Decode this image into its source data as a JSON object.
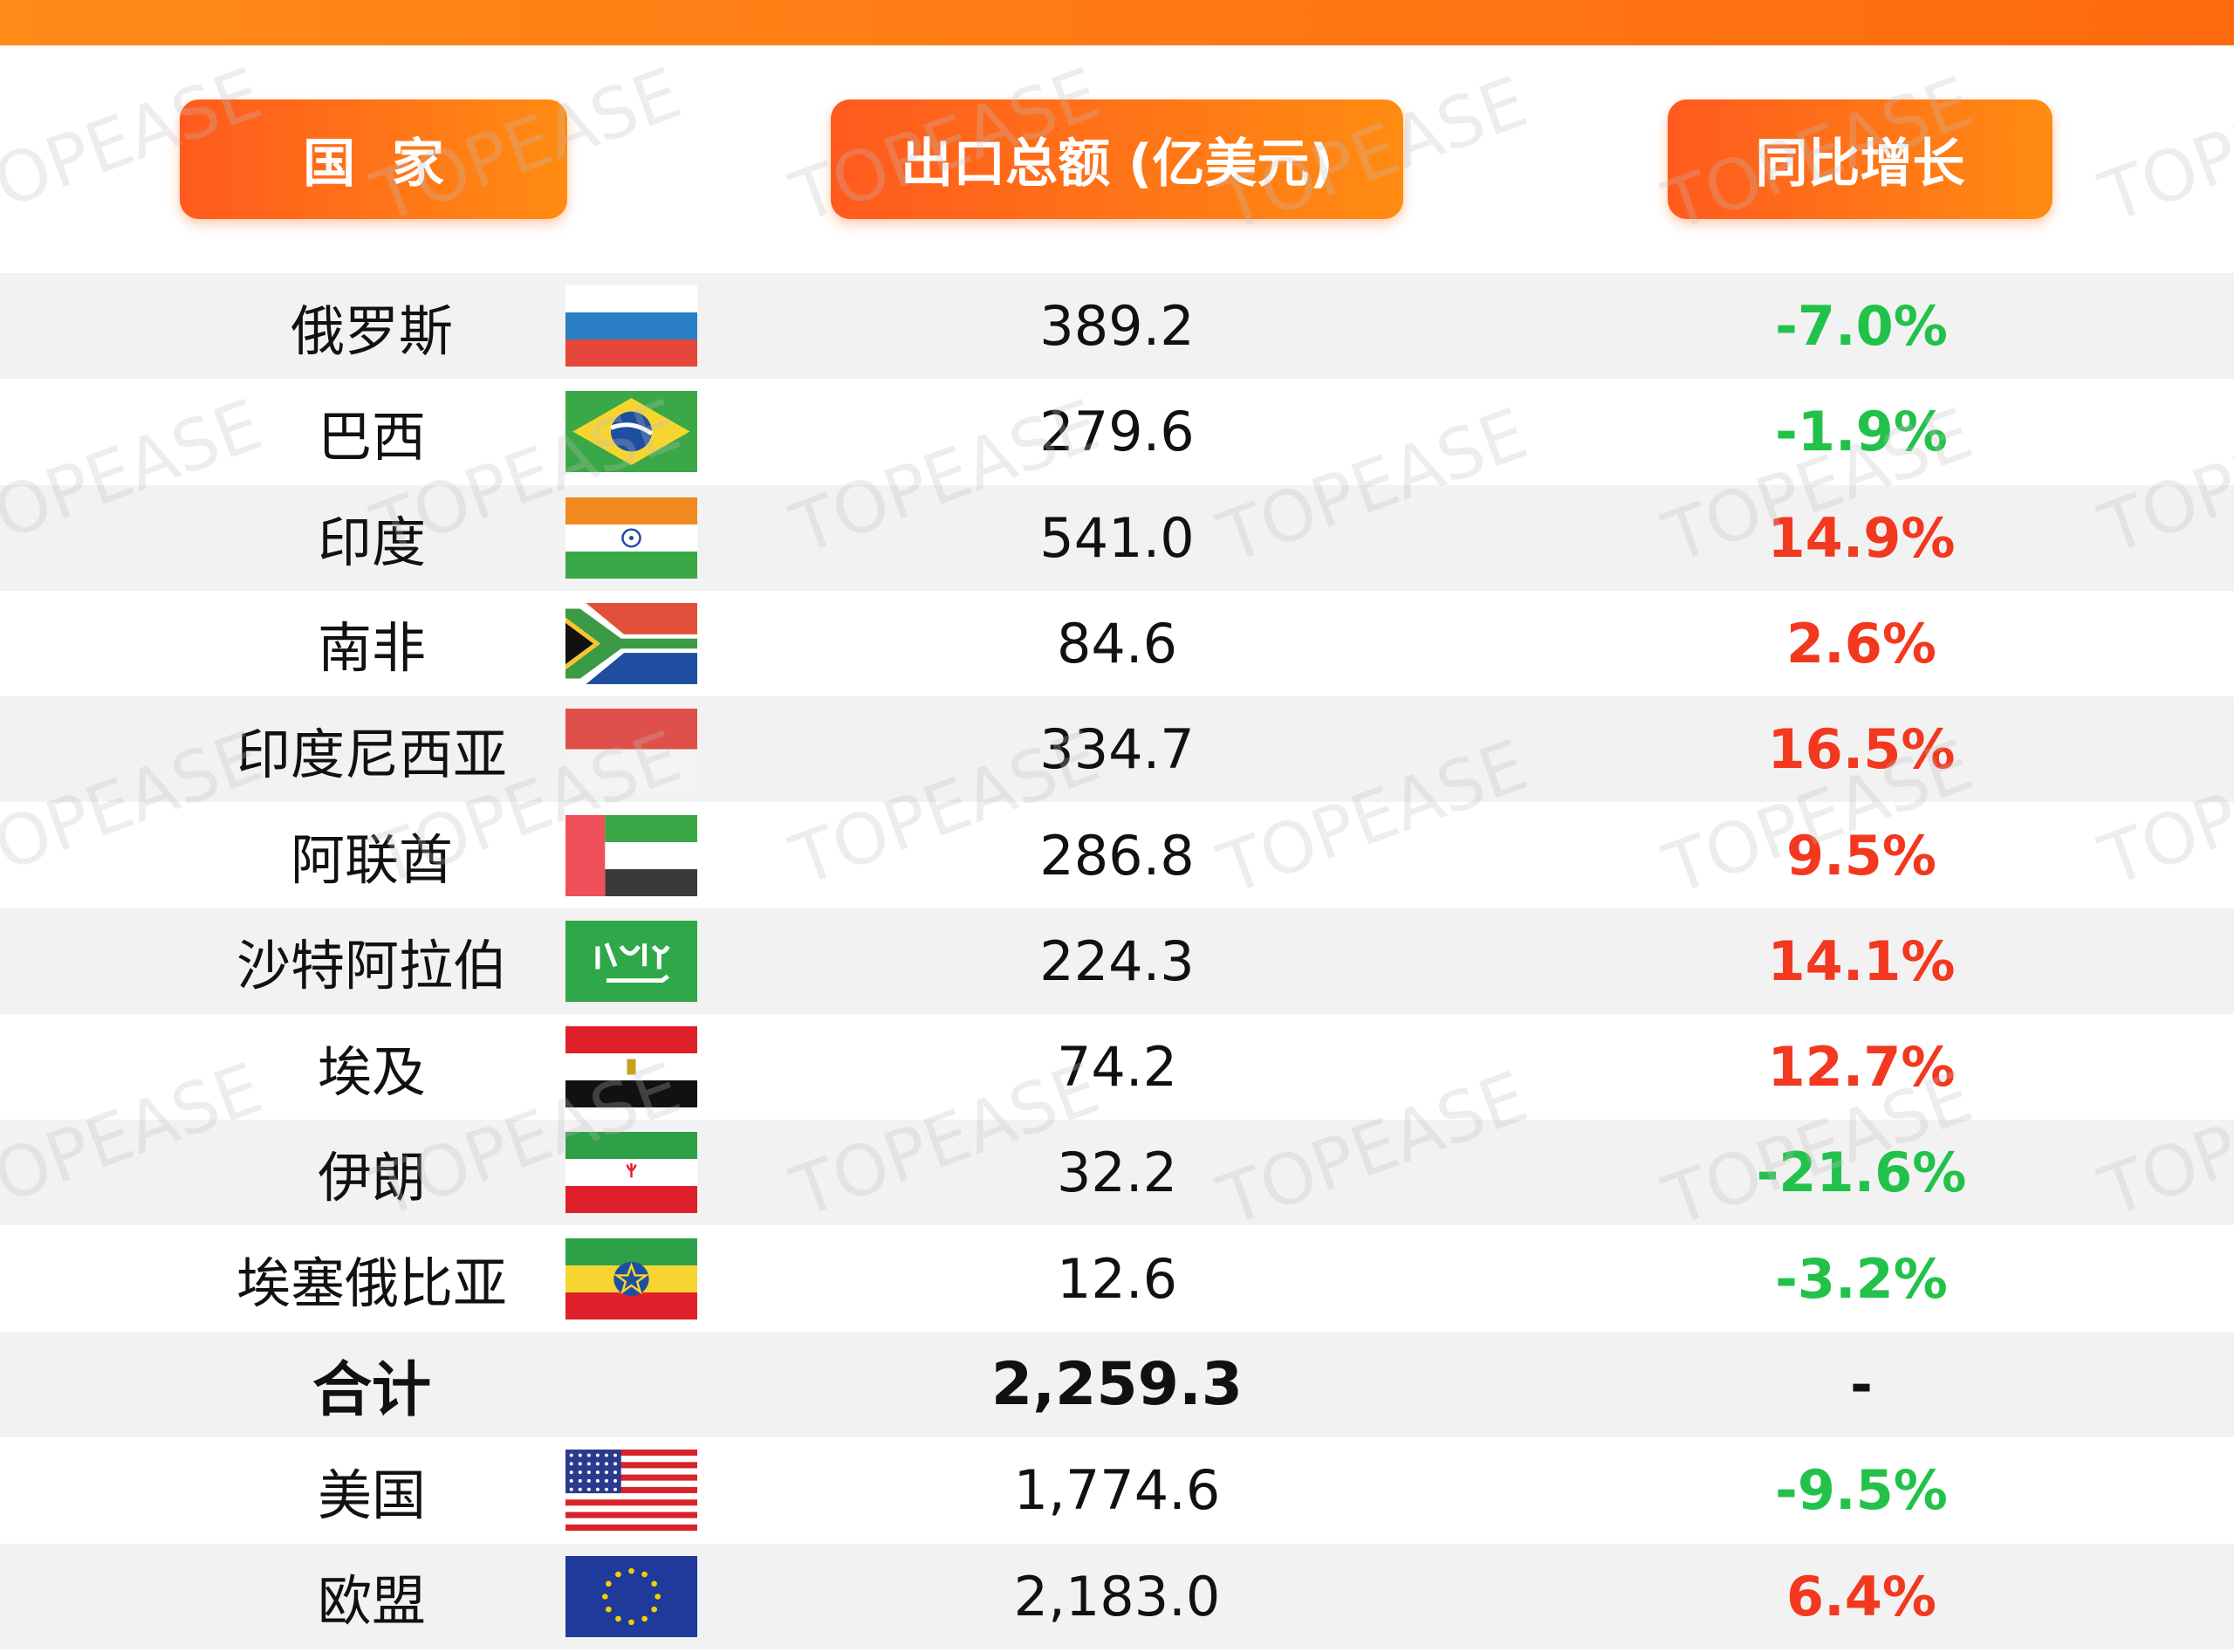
{
  "watermark": "TOPEASE",
  "header": {
    "columns": [
      "国  家",
      "出口总额 (亿美元)",
      "同比增长"
    ]
  },
  "colors": {
    "up": "#f2381f",
    "down": "#22c24a",
    "flat": "#111111"
  },
  "table": {
    "rows": [
      [
        "俄罗斯",
        "389.2",
        "-7.0%"
      ],
      [
        "巴西",
        "279.6",
        "-1.9%"
      ],
      [
        "印度",
        "541.0",
        "14.9%"
      ],
      [
        "南非",
        "84.6",
        "2.6%"
      ],
      [
        "印度尼西亚",
        "334.7",
        "16.5%"
      ],
      [
        "阿联酋",
        "286.8",
        "9.5%"
      ],
      [
        "沙特阿拉伯",
        "224.3",
        "14.1%"
      ],
      [
        "埃及",
        "74.2",
        "12.7%"
      ],
      [
        "伊朗",
        "32.2",
        "-21.6%"
      ],
      [
        "埃塞俄比亚",
        "12.6",
        "-3.2%"
      ],
      [
        "合计",
        "2,259.3",
        "-"
      ],
      [
        "美国",
        "1,774.6",
        "-9.5%"
      ],
      [
        "欧盟",
        "2,183.0",
        "6.4%"
      ]
    ]
  }
}
